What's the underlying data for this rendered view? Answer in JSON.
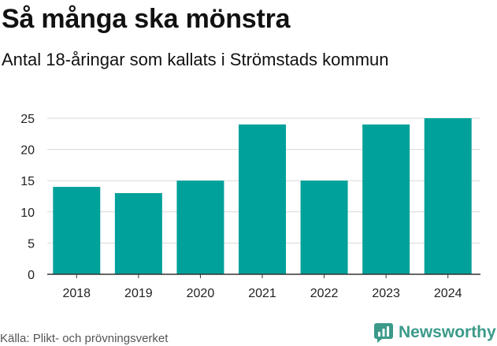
{
  "chart_data": {
    "type": "bar",
    "title": "Så många ska mönstra",
    "subtitle": "Antal 18-åringar som kallats i Strömstads kommun",
    "categories": [
      "2018",
      "2019",
      "2020",
      "2021",
      "2022",
      "2023",
      "2024"
    ],
    "values": [
      14,
      13,
      15,
      24,
      15,
      24,
      25
    ],
    "ylim": [
      0,
      25
    ],
    "yticks": [
      "0",
      "5",
      "10",
      "15",
      "20",
      "25"
    ],
    "xlabel": "",
    "ylabel": "",
    "grid": true,
    "bar_color": "#00a19a"
  },
  "footer": {
    "source": "Källa: Plikt- och prövningsverket",
    "brand": "Newsworthy",
    "brand_icon": "newsworthy-logo-icon",
    "brand_color": "#3b9a8a"
  }
}
